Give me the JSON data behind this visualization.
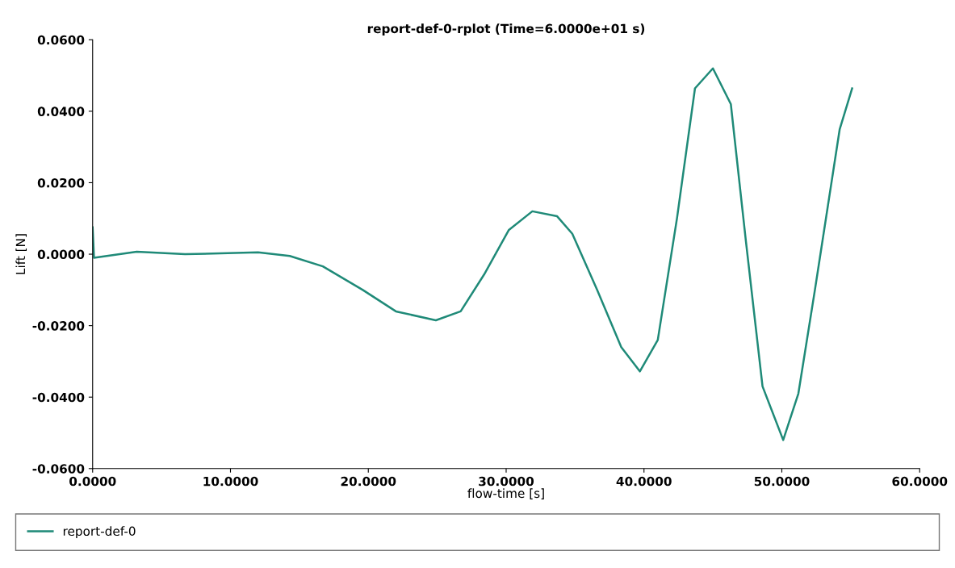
{
  "chart_data": {
    "type": "line",
    "title": "report-def-0-rplot (Time=6.0000e+01 s)",
    "xlabel": "flow-time [s]",
    "ylabel": "Lift [N]",
    "xlim": [
      0,
      60
    ],
    "ylim": [
      -0.06,
      0.06
    ],
    "xticks": [
      {
        "value": 0,
        "label": "0.0000"
      },
      {
        "value": 10,
        "label": "10.0000"
      },
      {
        "value": 20,
        "label": "20.0000"
      },
      {
        "value": 30,
        "label": "30.0000"
      },
      {
        "value": 40,
        "label": "40.0000"
      },
      {
        "value": 50,
        "label": "50.0000"
      },
      {
        "value": 60,
        "label": "60.0000"
      }
    ],
    "yticks": [
      {
        "value": -0.06,
        "label": "-0.0600"
      },
      {
        "value": -0.04,
        "label": "-0.0400"
      },
      {
        "value": -0.02,
        "label": "-0.0200"
      },
      {
        "value": 0,
        "label": "0.0000"
      },
      {
        "value": 0.02,
        "label": "0.0200"
      },
      {
        "value": 0.04,
        "label": "0.0400"
      },
      {
        "value": 0.06,
        "label": "0.0600"
      }
    ],
    "grid": false,
    "legend": "bottom",
    "marker": "none",
    "line_style": "solid",
    "series": [
      {
        "name": "report-def-0",
        "color": "#1f8a78",
        "x": [
          0,
          0.1,
          3.2,
          6.7,
          12,
          14.3,
          16.7,
          19.6,
          22,
          24.9,
          26.7,
          28.4,
          30.2,
          31.9,
          33.7,
          34.8,
          36.6,
          38.35,
          39.7,
          41,
          42.4,
          43.7,
          45,
          46.3,
          47.4,
          48.6,
          50.1,
          51.2,
          52.4,
          54.2,
          55.1
        ],
        "values": [
          0.0075,
          -0.001,
          0.0007,
          0,
          0.0005,
          -0.0005,
          -0.0034,
          -0.01,
          -0.016,
          -0.0185,
          -0.016,
          -0.0057,
          0.0068,
          0.012,
          0.0106,
          0.0057,
          -0.01,
          -0.026,
          -0.0328,
          -0.024,
          0.0102,
          0.0464,
          0.052,
          0.042,
          0.0034,
          -0.037,
          -0.052,
          -0.039,
          -0.01,
          0.035,
          0.0464
        ]
      }
    ]
  }
}
